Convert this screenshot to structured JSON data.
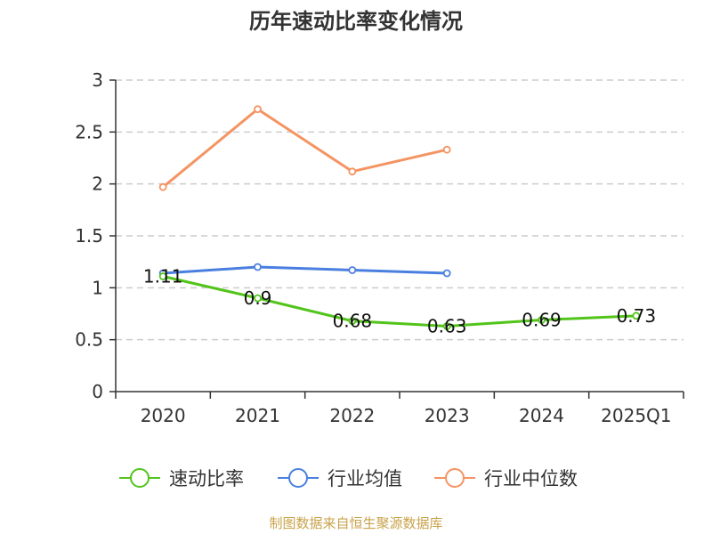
{
  "chart_data": {
    "type": "line",
    "title": "历年速动比率变化情况",
    "categories": [
      "2020",
      "2021",
      "2022",
      "2023",
      "2024",
      "2025Q1"
    ],
    "ylim": [
      0,
      3
    ],
    "yticks": [
      0,
      0.5,
      1,
      1.5,
      2,
      2.5,
      3
    ],
    "grid": true,
    "legend_position": "bottom",
    "series": [
      {
        "name": "速动比率",
        "color": "#52c41a",
        "values": [
          1.11,
          0.9,
          0.68,
          0.63,
          0.69,
          0.73
        ],
        "labels": [
          "1.11",
          "0.9",
          "0.68",
          "0.63",
          "0.69",
          "0.73"
        ]
      },
      {
        "name": "行业均值",
        "color": "#4a7fe0",
        "values": [
          1.14,
          1.2,
          1.17,
          1.14,
          null,
          null
        ]
      },
      {
        "name": "行业中位数",
        "color": "#f59463",
        "values": [
          1.97,
          2.72,
          2.12,
          2.33,
          null,
          null
        ]
      }
    ]
  },
  "footer": {
    "source": "制图数据来自恒生聚源数据库"
  }
}
